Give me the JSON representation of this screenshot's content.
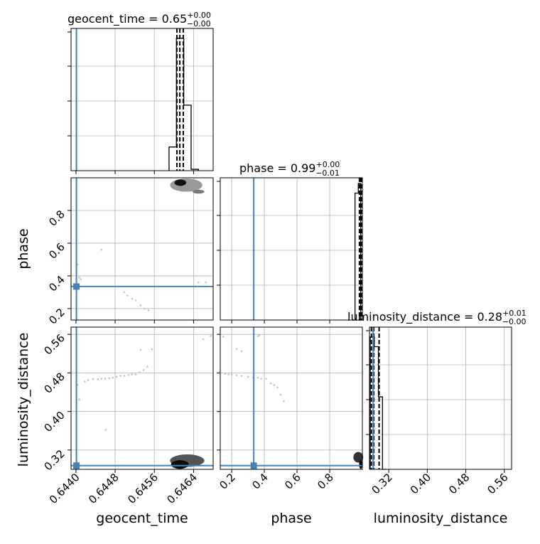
{
  "chart_data": {
    "type": "corner",
    "parameters": [
      "geocent_time",
      "phase",
      "luminosity_distance"
    ],
    "truth": {
      "geocent_time": 0.64401,
      "phase": 0.335,
      "luminosity_distance": 0.2877
    },
    "colors": {
      "truth": "#4682b4",
      "hist": "#000000",
      "grid": "#b0b0b0"
    },
    "diagonals": [
      {
        "param": "geocent_time",
        "title": "geocent_time = 0.65",
        "sup": "+0.00",
        "sub": "−0.00",
        "xlim": [
          0.6439,
          0.6468
        ],
        "bins": [
          0.6459,
          0.64605,
          0.6462,
          0.64635,
          0.6465
        ],
        "counts": [
          0.17,
          0.95,
          0.47,
          0.01
        ],
        "quantiles": [
          0.64606,
          0.64612,
          0.64619
        ],
        "ylim": [
          0,
          1
        ]
      },
      {
        "param": "phase",
        "title": "phase = 0.99",
        "sup": "+0.00",
        "sub": "−0.01",
        "xlim": [
          0.13,
          1.0
        ],
        "bins": [
          0.955,
          0.975,
          0.99,
          1.0
        ],
        "counts": [
          0.91,
          0.98,
          0.0
        ],
        "quantiles": [
          0.982,
          0.99,
          0.996
        ],
        "ylim": [
          0,
          1
        ]
      },
      {
        "param": "luminosity_distance",
        "title": "luminosity_distance = 0.28",
        "sup": "+0.01",
        "sub": "−0.00",
        "xlim": [
          0.28,
          0.575
        ],
        "bins": [
          0.2815,
          0.29,
          0.2985,
          0.307,
          0.315
        ],
        "counts": [
          0.95,
          0.88,
          0.52,
          0.0
        ],
        "quantiles": [
          0.284,
          0.289,
          0.3
        ],
        "ylim": [
          0,
          1
        ]
      }
    ],
    "panels": [
      {
        "id": "phase-vs-geocent_time",
        "x": "geocent_time",
        "y": "phase",
        "xlim": [
          0.6439,
          0.6468
        ],
        "ylim": [
          0.17,
          0.99
        ]
      },
      {
        "id": "luminosity_distance-vs-geocent_time",
        "x": "geocent_time",
        "y": "luminosity_distance",
        "xlim": [
          0.6439,
          0.6468
        ],
        "ylim": [
          0.28,
          0.575
        ]
      },
      {
        "id": "luminosity_distance-vs-phase",
        "x": "phase",
        "y": "luminosity_distance",
        "xlim": [
          0.13,
          1.0
        ],
        "ylim": [
          0.28,
          0.575
        ]
      }
    ],
    "scatter": {
      "phase-vs-geocent_time": [
        [
          0.64403,
          0.47
        ],
        [
          0.64407,
          0.39
        ],
        [
          0.6441,
          0.38
        ],
        [
          0.64452,
          0.56
        ],
        [
          0.64498,
          0.3
        ],
        [
          0.64505,
          0.28
        ],
        [
          0.64515,
          0.26
        ],
        [
          0.64522,
          0.25
        ],
        [
          0.64532,
          0.22
        ],
        [
          0.6454,
          0.2
        ],
        [
          0.64548,
          0.19
        ],
        [
          0.6465,
          0.36
        ],
        [
          0.64665,
          0.36
        ]
      ],
      "luminosity_distance-vs-geocent_time": [
        [
          0.64403,
          0.455
        ],
        [
          0.64407,
          0.425
        ],
        [
          0.64418,
          0.462
        ],
        [
          0.64425,
          0.465
        ],
        [
          0.64435,
          0.467
        ],
        [
          0.64445,
          0.467
        ],
        [
          0.64452,
          0.468
        ],
        [
          0.6446,
          0.468
        ],
        [
          0.64468,
          0.469
        ],
        [
          0.64475,
          0.47
        ],
        [
          0.64483,
          0.472
        ],
        [
          0.64491,
          0.474
        ],
        [
          0.64499,
          0.474
        ],
        [
          0.64507,
          0.476
        ],
        [
          0.64514,
          0.477
        ],
        [
          0.64522,
          0.477
        ],
        [
          0.6453,
          0.481
        ],
        [
          0.64538,
          0.486
        ],
        [
          0.64546,
          0.493
        ],
        [
          0.64532,
          0.528
        ],
        [
          0.64555,
          0.529
        ],
        [
          0.64461,
          0.362
        ],
        [
          0.6466,
          0.55
        ],
        [
          0.64675,
          0.557
        ]
      ],
      "luminosity_distance-vs-phase": [
        [
          0.16,
          0.478
        ],
        [
          0.18,
          0.477
        ],
        [
          0.2,
          0.476
        ],
        [
          0.23,
          0.475
        ],
        [
          0.26,
          0.474
        ],
        [
          0.3,
          0.472
        ],
        [
          0.33,
          0.471
        ],
        [
          0.36,
          0.47
        ],
        [
          0.38,
          0.468
        ],
        [
          0.41,
          0.468
        ],
        [
          0.44,
          0.458
        ],
        [
          0.46,
          0.455
        ],
        [
          0.48,
          0.45
        ],
        [
          0.5,
          0.435
        ],
        [
          0.52,
          0.421
        ],
        [
          0.23,
          0.53
        ],
        [
          0.26,
          0.525
        ],
        [
          0.36,
          0.556
        ],
        [
          0.37,
          0.558
        ],
        [
          0.15,
          0.555
        ]
      ]
    },
    "tick_labels": {
      "geocent_time": [
        "0.6440",
        "0.6448",
        "0.6456",
        "0.6464"
      ],
      "phase": [
        "0.2",
        "0.4",
        "0.6",
        "0.8"
      ],
      "luminosity_distance": [
        "0.32",
        "0.40",
        "0.48",
        "0.56"
      ]
    },
    "tick_values": {
      "geocent_time": [
        0.644,
        0.6448,
        0.6456,
        0.6464
      ],
      "phase": [
        0.2,
        0.4,
        0.6,
        0.8
      ],
      "luminosity_distance": [
        0.32,
        0.4,
        0.48,
        0.56
      ]
    },
    "grid": true
  }
}
